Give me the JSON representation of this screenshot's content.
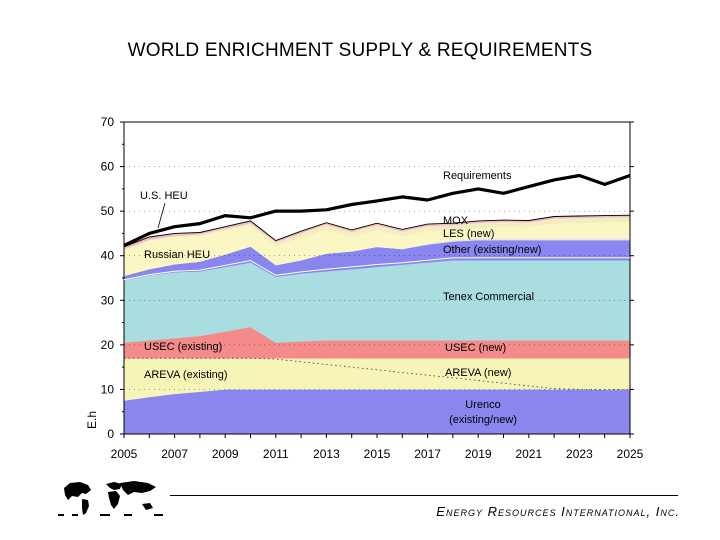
{
  "title": "WORLD ENRICHMENT SUPPLY & REQUIREMENTS",
  "company": "Energy Resources International, Inc.",
  "chart_data": {
    "type": "area",
    "stacked": true,
    "x": [
      2005,
      2006,
      2007,
      2008,
      2009,
      2010,
      2011,
      2012,
      2013,
      2014,
      2015,
      2016,
      2017,
      2018,
      2019,
      2020,
      2021,
      2022,
      2023,
      2024,
      2025
    ],
    "xlim": [
      2005,
      2025
    ],
    "xticks": [
      "2005",
      "2007",
      "2009",
      "2011",
      "2013",
      "2015",
      "2017",
      "2019",
      "2021",
      "2023",
      "2025"
    ],
    "ylim": [
      0,
      70
    ],
    "yticks": [
      "0",
      "10",
      "20",
      "30",
      "40",
      "50",
      "60",
      "70"
    ],
    "ylabel": "E.h",
    "series": [
      {
        "name": "Urenco (existing/new)",
        "color": "#8a86f0",
        "values": [
          7.5,
          8.3,
          9,
          9.5,
          10,
          10,
          10,
          10,
          10,
          10,
          10,
          10,
          10,
          10,
          10,
          10,
          10,
          10,
          10,
          10,
          10
        ]
      },
      {
        "name": "AREVA (existing)",
        "color": "#f7f4b8",
        "values": [
          9.5,
          8.7,
          8,
          7.5,
          7,
          7,
          6.8,
          6.2,
          5.6,
          5,
          4.4,
          3.8,
          3.2,
          2.6,
          2,
          1.4,
          0.8,
          0.2,
          0,
          0,
          0
        ]
      },
      {
        "name": "AREVA (new)",
        "color": "#f7f4b8",
        "values": [
          0,
          0,
          0,
          0,
          0,
          0,
          0.2,
          0.8,
          1.4,
          2,
          2.6,
          3.2,
          3.8,
          4.4,
          5,
          5.6,
          6.2,
          6.8,
          7,
          7,
          7
        ]
      },
      {
        "name": "USEC (existing)",
        "color": "#f48a8a",
        "values": [
          3.5,
          4,
          4.5,
          5,
          6,
          7,
          3.5,
          0,
          0,
          0,
          0,
          0,
          0,
          0,
          0,
          0,
          0,
          0,
          0,
          0,
          0
        ]
      },
      {
        "name": "USEC (new)",
        "color": "#f48a8a",
        "values": [
          0,
          0,
          0,
          0,
          0,
          0,
          0,
          3.8,
          4,
          4,
          4,
          4,
          4,
          4,
          4,
          4,
          4,
          4,
          4,
          4,
          4
        ]
      },
      {
        "name": "Tenex Commercial",
        "color": "#a9dde0",
        "values": [
          14,
          14.6,
          14.8,
          14.5,
          14.5,
          14.5,
          14.8,
          15.2,
          15.5,
          16,
          16.5,
          17,
          17.5,
          18,
          18,
          18,
          18,
          18,
          18,
          18,
          18
        ]
      },
      {
        "name": "Other (existing/new)",
        "color": "#8a86f0",
        "values": [
          1,
          1.4,
          1.8,
          2.2,
          2.8,
          3.6,
          2.6,
          3,
          4,
          4,
          4.5,
          3.5,
          4,
          4.2,
          4.5,
          4.5,
          4.5,
          4.5,
          4.5,
          4.5,
          4.5
        ]
      },
      {
        "name": "LES (new)",
        "color": "#e5e5e5",
        "values": [
          0,
          0,
          0,
          0,
          0,
          0,
          0,
          0,
          0,
          0,
          0,
          0,
          0.2,
          0.3,
          0.4,
          0.4,
          0.4,
          0.4,
          0.4,
          0.4,
          0.4
        ]
      },
      {
        "name": "Russian HEU",
        "color": "#fbf7c4",
        "values": [
          5.8,
          6.4,
          6.2,
          5.8,
          5.4,
          4.7,
          4.3,
          5.1,
          5.4,
          3.3,
          3.8,
          2.9,
          2.9,
          2.3,
          2.4,
          2.6,
          2.5,
          3.4,
          3.5,
          3.6,
          3.7
        ]
      },
      {
        "name": "MOX",
        "color": "#f3eec0",
        "values": [
          0.2,
          0.2,
          0.2,
          0.3,
          0.4,
          0.5,
          0.8,
          1,
          1.1,
          1.1,
          1.1,
          1.1,
          1.1,
          1.1,
          1.1,
          1.1,
          1.1,
          1.1,
          1.1,
          1.1,
          1.1
        ]
      },
      {
        "name": "U.S. HEU",
        "color": "#f2b8c8",
        "values": [
          0.5,
          0.6,
          0.5,
          0.4,
          0.4,
          0.5,
          0.4,
          0.4,
          0.4,
          0.4,
          0.4,
          0.4,
          0.4,
          0.4,
          0.4,
          0.4,
          0.4,
          0.4,
          0.4,
          0.4,
          0.4
        ]
      }
    ],
    "requirements": {
      "name": "Requirements",
      "values": [
        42.3,
        45,
        46.5,
        47.2,
        49,
        48.5,
        50,
        50,
        50.3,
        51.5,
        52.3,
        53.2,
        52.5,
        54,
        55,
        54,
        55.5,
        57,
        58,
        56,
        58
      ]
    },
    "annotations": {
      "requirements": "Requirements",
      "us_heu": "U.S. HEU",
      "russian_heu": "Russian HEU",
      "mox": "MOX",
      "les_new": "LES (new)",
      "other": "Other (existing/new)",
      "tenex": "Tenex Commercial",
      "usec_existing": "USEC (existing)",
      "usec_new": "USEC (new)",
      "areva_existing": "AREVA (existing)",
      "areva_new": "AREVA (new)",
      "urenco_line1": "Urenco",
      "urenco_line2": "(existing/new)"
    }
  }
}
